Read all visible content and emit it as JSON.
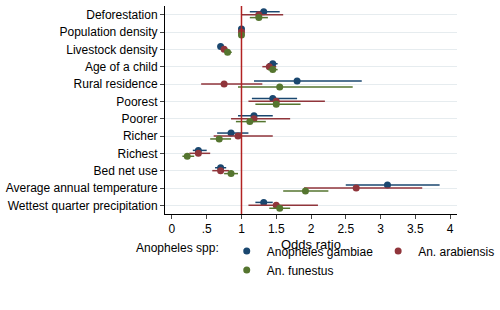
{
  "chart_data": {
    "type": "dot_whisker",
    "orientation": "horizontal",
    "x_label": "Odds ratio",
    "legend_title": "Anopheles spp:",
    "legend": "bottom",
    "grid": true,
    "categories": [
      "Deforestation",
      "Population density",
      "Livestock density",
      "Age of a child",
      "Rural residence",
      "Poorest",
      "Poorer",
      "Richer",
      "Richest",
      "Bed net use",
      "Average annual temperature",
      "Wettest quarter precipitation"
    ],
    "xlim": [
      -0.1,
      4.1
    ],
    "xticks": [
      0,
      {
        "value": 0.5,
        "label": ".5"
      },
      1,
      1.5,
      2,
      2.5,
      3,
      3.5,
      4
    ],
    "reference_line": {
      "x": 1,
      "color": "#b22222"
    },
    "series": [
      {
        "name": "Anopheles gambiae",
        "color": "#1a476f",
        "values": [
          1.32,
          1.0,
          0.7,
          1.45,
          1.8,
          1.45,
          1.18,
          0.85,
          0.38,
          0.7,
          3.1,
          1.32
        ],
        "lower": [
          1.12,
          0.99,
          0.66,
          1.38,
          1.18,
          1.15,
          0.95,
          0.65,
          0.3,
          0.62,
          2.5,
          1.2
        ],
        "upper": [
          1.55,
          1.01,
          0.74,
          1.52,
          2.73,
          1.8,
          1.45,
          1.1,
          0.5,
          0.78,
          3.85,
          1.45
        ]
      },
      {
        "name": "An. arabiensis",
        "color": "#90353b",
        "values": [
          1.25,
          1.0,
          0.75,
          1.4,
          0.75,
          1.5,
          1.18,
          0.95,
          0.38,
          0.7,
          2.65,
          1.5
        ],
        "lower": [
          1.0,
          0.99,
          0.7,
          1.3,
          0.42,
          1.1,
          0.85,
          0.6,
          0.25,
          0.58,
          1.9,
          1.1
        ],
        "upper": [
          1.6,
          1.01,
          0.8,
          1.5,
          1.3,
          2.2,
          1.7,
          1.45,
          0.55,
          0.82,
          3.6,
          2.1
        ]
      },
      {
        "name": "An. funestus",
        "color": "#55752f",
        "values": [
          1.25,
          1.0,
          0.8,
          1.45,
          1.55,
          1.5,
          1.12,
          0.68,
          0.22,
          0.85,
          1.92,
          1.55
        ],
        "lower": [
          1.12,
          0.99,
          0.76,
          1.38,
          0.95,
          1.2,
          0.92,
          0.55,
          0.15,
          0.75,
          1.6,
          1.4
        ],
        "upper": [
          1.38,
          1.01,
          0.86,
          1.52,
          2.6,
          1.85,
          1.35,
          0.85,
          0.32,
          0.95,
          2.25,
          1.7
        ]
      }
    ]
  }
}
